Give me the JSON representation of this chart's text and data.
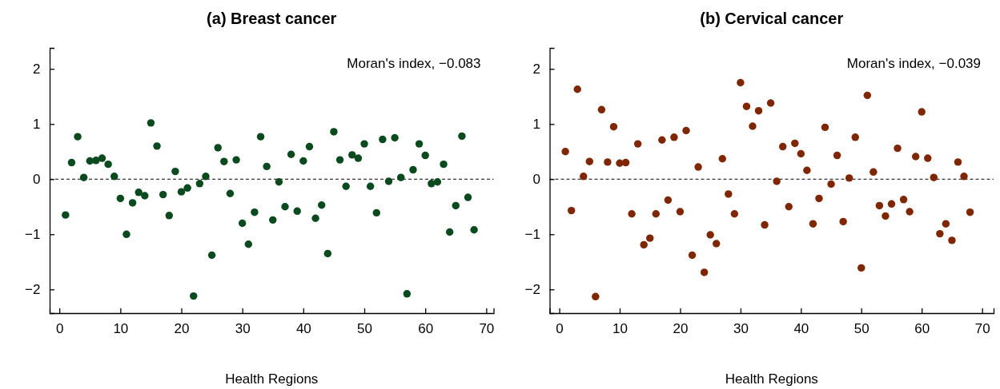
{
  "chart_data": [
    {
      "type": "scatter",
      "title": "(a) Breast cancer",
      "xlabel": "Health Regions",
      "annotations": [
        "Moran's index,  −0.083"
      ],
      "marker": "circle",
      "grid": false,
      "x": [
        1,
        2,
        3,
        4,
        5,
        6,
        7,
        8,
        9,
        10,
        11,
        12,
        13,
        14,
        15,
        16,
        17,
        18,
        19,
        20,
        21,
        22,
        23,
        24,
        25,
        26,
        27,
        28,
        29,
        30,
        31,
        32,
        33,
        34,
        35,
        36,
        37,
        38,
        39,
        40,
        41,
        42,
        43,
        44,
        45,
        46,
        47,
        48,
        49,
        50,
        51,
        52,
        53,
        54,
        55,
        56,
        57,
        58,
        59,
        60,
        61,
        62,
        63,
        64,
        65,
        66,
        67,
        68
      ],
      "series": [
        {
          "color": "#0b4a1f",
          "values": [
            -0.65,
            0.3,
            0.77,
            0.03,
            0.33,
            0.34,
            0.38,
            0.27,
            0.05,
            -0.35,
            -1.0,
            -0.43,
            -0.24,
            -0.3,
            1.02,
            0.6,
            -0.28,
            -0.66,
            0.14,
            -0.23,
            -0.16,
            -2.12,
            -0.08,
            0.05,
            -1.38,
            0.57,
            0.32,
            -0.26,
            0.35,
            -0.8,
            -1.18,
            -0.6,
            0.77,
            0.23,
            -0.74,
            -0.05,
            -0.5,
            0.45,
            -0.58,
            0.33,
            0.59,
            -0.71,
            -0.47,
            -1.35,
            0.86,
            0.35,
            -0.13,
            0.44,
            0.38,
            0.64,
            -0.13,
            -0.61,
            0.72,
            -0.04,
            0.75,
            0.03,
            -2.08,
            0.17,
            0.64,
            0.43,
            -0.08,
            -0.05,
            0.27,
            -0.96,
            -0.48,
            0.78,
            -0.33,
            -0.92
          ]
        }
      ],
      "xlim": [
        -1.6,
        71.2
      ],
      "xticks": [
        0,
        10,
        20,
        30,
        40,
        50,
        60,
        70
      ],
      "ylim": [
        -2.43,
        2.38
      ],
      "yticks": [
        -2,
        -1,
        0,
        1,
        2
      ],
      "ref_lines": [
        {
          "axis": "y",
          "value": 0,
          "line_style": "dashed",
          "color": "#000000"
        }
      ]
    },
    {
      "type": "scatter",
      "title": "(b) Cervical cancer",
      "xlabel": "Health Regions",
      "annotations": [
        "Moran's index,  −0.039"
      ],
      "marker": "circle",
      "grid": false,
      "x": [
        1,
        2,
        3,
        4,
        5,
        6,
        7,
        8,
        9,
        10,
        11,
        12,
        13,
        14,
        15,
        16,
        17,
        18,
        19,
        20,
        21,
        22,
        23,
        24,
        25,
        26,
        27,
        28,
        29,
        30,
        31,
        32,
        33,
        34,
        35,
        36,
        37,
        38,
        39,
        40,
        41,
        42,
        43,
        44,
        45,
        46,
        47,
        48,
        49,
        50,
        51,
        52,
        53,
        54,
        55,
        56,
        57,
        58,
        59,
        60,
        61,
        62,
        63,
        64,
        65,
        66,
        67,
        68
      ],
      "series": [
        {
          "color": "#7f2704",
          "values": [
            0.5,
            -0.57,
            1.63,
            0.05,
            0.32,
            -2.13,
            1.26,
            0.31,
            0.95,
            0.29,
            0.3,
            -0.63,
            0.64,
            -1.19,
            -1.07,
            -0.63,
            0.71,
            -0.38,
            0.76,
            -0.59,
            0.88,
            -1.38,
            0.22,
            -1.69,
            -1.01,
            -1.17,
            0.37,
            -0.27,
            -0.63,
            1.75,
            1.32,
            0.96,
            1.24,
            -0.83,
            1.38,
            -0.04,
            0.59,
            -0.5,
            0.65,
            0.46,
            0.16,
            -0.81,
            -0.35,
            0.94,
            -0.09,
            0.43,
            -0.77,
            0.02,
            0.76,
            -1.61,
            1.52,
            0.13,
            -0.48,
            -0.67,
            -0.45,
            0.56,
            -0.37,
            -0.59,
            0.41,
            1.22,
            0.38,
            0.03,
            -0.99,
            -0.81,
            -1.11,
            0.31,
            0.05,
            -0.6
          ]
        }
      ],
      "xlim": [
        -1.6,
        71.9
      ],
      "xticks": [
        0,
        10,
        20,
        30,
        40,
        50,
        60,
        70
      ],
      "ylim": [
        -2.43,
        2.38
      ],
      "yticks": [
        -2,
        -1,
        0,
        1,
        2
      ],
      "ref_lines": [
        {
          "axis": "y",
          "value": 0,
          "line_style": "dashed",
          "color": "#000000"
        }
      ]
    }
  ]
}
